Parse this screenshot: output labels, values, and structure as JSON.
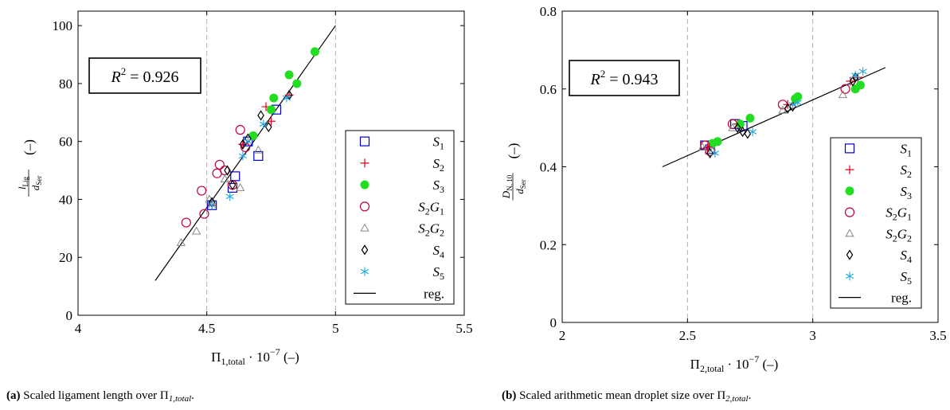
{
  "colors": {
    "S1": "#0000cc",
    "S2": "#e0001a",
    "S3": "#22dd22",
    "S2G1": "#c0003c",
    "S2G2": "#888888",
    "S4": "#000000",
    "S5": "#23a8e0",
    "reg": "#000000",
    "grid": "#b0b0b0"
  },
  "legend_entries": [
    {
      "key": "S1",
      "label": "S",
      "sub1": "1",
      "sub2": "",
      "marker": "square-icon"
    },
    {
      "key": "S2",
      "label": "S",
      "sub1": "2",
      "sub2": "",
      "marker": "plus-icon"
    },
    {
      "key": "S3",
      "label": "S",
      "sub1": "3",
      "sub2": "",
      "marker": "filled-circle-icon"
    },
    {
      "key": "S2G1",
      "label": "S",
      "sub1": "2",
      "mid": "G",
      "sub2": "1",
      "marker": "circle-icon"
    },
    {
      "key": "S2G2",
      "label": "S",
      "sub1": "2",
      "mid": "G",
      "sub2": "2",
      "marker": "triangle-icon"
    },
    {
      "key": "S4",
      "label": "S",
      "sub1": "4",
      "sub2": "",
      "marker": "diamond-icon"
    },
    {
      "key": "S5",
      "label": "S",
      "sub1": "5",
      "sub2": "",
      "marker": "asterisk-icon"
    },
    {
      "key": "reg",
      "label": "reg.",
      "marker": "line-icon"
    }
  ],
  "chart_data": [
    {
      "type": "scatter",
      "caption_prefix": "(a)",
      "caption_text": "Scaled ligament length over Π",
      "caption_sub": "1,total",
      "caption_suffix": ".",
      "xlabel_main": "Π",
      "xlabel_sub": "1,total",
      "xlabel_factor": "· 10",
      "xlabel_exp": "−7",
      "xlabel_unit": "(–)",
      "ylabel_num": "l",
      "ylabel_num_sub": "Lig",
      "ylabel_den": "d",
      "ylabel_den_sub": "Ser",
      "ylabel_unit": "(–)",
      "r2_text": "R",
      "r2_value": "= 0.926",
      "xlim": [
        4,
        5.5
      ],
      "ylim": [
        0,
        105
      ],
      "xticks": [
        4,
        4.5,
        5,
        5.5
      ],
      "xtick_labels": [
        "4",
        "4.5",
        "5",
        "5.5"
      ],
      "yticks": [
        0,
        20,
        40,
        60,
        80,
        100
      ],
      "ytick_labels": [
        "0",
        "20",
        "40",
        "60",
        "80",
        "100"
      ],
      "grid_x": [
        4.5,
        5.0
      ],
      "regression": {
        "x": [
          4.3,
          5.0
        ],
        "y": [
          12,
          100
        ]
      },
      "series": [
        {
          "name": "S1",
          "x": [
            4.52,
            4.6,
            4.61,
            4.66,
            4.7,
            4.77
          ],
          "y": [
            38,
            44,
            48,
            60,
            55,
            71
          ]
        },
        {
          "name": "S2",
          "x": [
            4.52,
            4.64,
            4.73,
            4.75,
            4.82
          ],
          "y": [
            38,
            59,
            72,
            67,
            76
          ]
        },
        {
          "name": "S3",
          "x": [
            4.68,
            4.75,
            4.76,
            4.82,
            4.85,
            4.92
          ],
          "y": [
            62,
            71,
            75,
            83,
            80,
            91
          ]
        },
        {
          "name": "S2G1",
          "x": [
            4.42,
            4.48,
            4.49,
            4.54,
            4.55,
            4.57,
            4.6,
            4.63,
            4.65
          ],
          "y": [
            32,
            43,
            35,
            49,
            52,
            50,
            45,
            64,
            58
          ]
        },
        {
          "name": "S2G2",
          "x": [
            4.4,
            4.46,
            4.51,
            4.57,
            4.63,
            4.7
          ],
          "y": [
            25,
            29,
            40,
            47,
            44,
            57
          ]
        },
        {
          "name": "S4",
          "x": [
            4.52,
            4.58,
            4.6,
            4.64,
            4.66,
            4.71,
            4.74,
            4.82
          ],
          "y": [
            39,
            50,
            45,
            59,
            61,
            69,
            65,
            76
          ]
        },
        {
          "name": "S5",
          "x": [
            4.52,
            4.59,
            4.64,
            4.66,
            4.72,
            4.81
          ],
          "y": [
            38,
            41,
            55,
            60,
            66,
            75
          ]
        }
      ]
    },
    {
      "type": "scatter",
      "caption_prefix": "(b)",
      "caption_text": "Scaled arithmetic mean droplet size over Π",
      "caption_sub": "2,total",
      "caption_suffix": ".",
      "xlabel_main": "Π",
      "xlabel_sub": "2,total",
      "xlabel_factor": "· 10",
      "xlabel_exp": "−7",
      "xlabel_unit": "(–)",
      "ylabel_num": "D",
      "ylabel_num_sub": "N, 10",
      "ylabel_den": "d",
      "ylabel_den_sub": "Ser",
      "ylabel_unit": "(–)",
      "r2_text": "R",
      "r2_value": "= 0.943",
      "xlim": [
        2,
        3.5
      ],
      "ylim": [
        0,
        0.8
      ],
      "xticks": [
        2,
        2.5,
        3,
        3.5
      ],
      "xtick_labels": [
        "2",
        "2.5",
        "3",
        "3.5"
      ],
      "yticks": [
        0,
        0.2,
        0.4,
        0.6,
        0.8
      ],
      "ytick_labels": [
        "0",
        "0.2",
        "0.4",
        "0.6",
        "0.8"
      ],
      "grid_x": [
        2.5,
        3.0
      ],
      "regression": {
        "x": [
          2.4,
          3.29
        ],
        "y": [
          0.4,
          0.655
        ]
      },
      "series": [
        {
          "name": "S1",
          "x": [
            2.57,
            2.59,
            2.69,
            2.72
          ],
          "y": [
            0.455,
            0.445,
            0.51,
            0.505
          ]
        },
        {
          "name": "S2",
          "x": [
            2.58,
            2.7,
            2.9,
            3.15,
            3.18
          ],
          "y": [
            0.45,
            0.51,
            0.56,
            0.62,
            0.63
          ]
        },
        {
          "name": "S3",
          "x": [
            2.6,
            2.62,
            2.71,
            2.75,
            2.93,
            2.94,
            3.17,
            3.19
          ],
          "y": [
            0.46,
            0.465,
            0.51,
            0.525,
            0.575,
            0.58,
            0.6,
            0.61
          ]
        },
        {
          "name": "S2G1",
          "x": [
            2.57,
            2.59,
            2.68,
            2.88,
            3.13
          ],
          "y": [
            0.455,
            0.44,
            0.51,
            0.56,
            0.6
          ]
        },
        {
          "name": "S2G2",
          "x": [
            2.56,
            2.6,
            2.68,
            2.88,
            3.12
          ],
          "y": [
            0.45,
            0.44,
            0.5,
            0.545,
            0.585
          ]
        },
        {
          "name": "S4",
          "x": [
            2.59,
            2.7,
            2.72,
            2.74,
            2.9,
            2.92,
            3.16,
            3.17
          ],
          "y": [
            0.435,
            0.5,
            0.49,
            0.485,
            0.55,
            0.555,
            0.62,
            0.63
          ]
        },
        {
          "name": "S5",
          "x": [
            2.61,
            2.76,
            2.92,
            2.94,
            3.17,
            3.2
          ],
          "y": [
            0.435,
            0.49,
            0.56,
            0.565,
            0.635,
            0.645
          ]
        }
      ]
    }
  ]
}
